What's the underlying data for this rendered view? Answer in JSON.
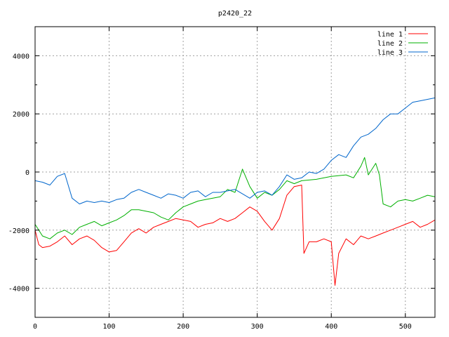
{
  "chart_data": {
    "type": "line",
    "title": "p2420_22",
    "xlim": [
      0,
      540
    ],
    "ylim": [
      -5000,
      5000
    ],
    "x_ticks": [
      0,
      100,
      200,
      300,
      400,
      500
    ],
    "y_ticks": [
      -4000,
      -2000,
      0,
      2000,
      4000
    ],
    "grid": true,
    "legend_position": "top-right",
    "series": [
      {
        "name": "line 1",
        "color": "#ff0000",
        "points": [
          [
            0,
            -2000
          ],
          [
            5,
            -2500
          ],
          [
            10,
            -2600
          ],
          [
            20,
            -2550
          ],
          [
            30,
            -2400
          ],
          [
            40,
            -2200
          ],
          [
            50,
            -2500
          ],
          [
            60,
            -2300
          ],
          [
            70,
            -2200
          ],
          [
            80,
            -2350
          ],
          [
            90,
            -2600
          ],
          [
            100,
            -2750
          ],
          [
            110,
            -2700
          ],
          [
            120,
            -2400
          ],
          [
            130,
            -2100
          ],
          [
            140,
            -1950
          ],
          [
            150,
            -2100
          ],
          [
            160,
            -1900
          ],
          [
            170,
            -1800
          ],
          [
            180,
            -1700
          ],
          [
            190,
            -1600
          ],
          [
            200,
            -1650
          ],
          [
            210,
            -1700
          ],
          [
            220,
            -1900
          ],
          [
            230,
            -1800
          ],
          [
            240,
            -1750
          ],
          [
            250,
            -1600
          ],
          [
            260,
            -1700
          ],
          [
            270,
            -1600
          ],
          [
            280,
            -1400
          ],
          [
            290,
            -1200
          ],
          [
            300,
            -1350
          ],
          [
            310,
            -1700
          ],
          [
            320,
            -2000
          ],
          [
            330,
            -1600
          ],
          [
            340,
            -800
          ],
          [
            350,
            -500
          ],
          [
            360,
            -450
          ],
          [
            363,
            -2800
          ],
          [
            370,
            -2400
          ],
          [
            380,
            -2400
          ],
          [
            390,
            -2300
          ],
          [
            400,
            -2400
          ],
          [
            405,
            -3900
          ],
          [
            410,
            -2800
          ],
          [
            420,
            -2300
          ],
          [
            430,
            -2500
          ],
          [
            440,
            -2200
          ],
          [
            450,
            -2300
          ],
          [
            460,
            -2200
          ],
          [
            470,
            -2100
          ],
          [
            480,
            -2000
          ],
          [
            490,
            -1900
          ],
          [
            500,
            -1800
          ],
          [
            510,
            -1700
          ],
          [
            520,
            -1900
          ],
          [
            530,
            -1800
          ],
          [
            540,
            -1650
          ]
        ]
      },
      {
        "name": "line 2",
        "color": "#00b000",
        "points": [
          [
            0,
            -1800
          ],
          [
            10,
            -2200
          ],
          [
            20,
            -2300
          ],
          [
            30,
            -2100
          ],
          [
            40,
            -2000
          ],
          [
            50,
            -2150
          ],
          [
            60,
            -1900
          ],
          [
            70,
            -1800
          ],
          [
            80,
            -1700
          ],
          [
            90,
            -1850
          ],
          [
            100,
            -1750
          ],
          [
            110,
            -1650
          ],
          [
            120,
            -1500
          ],
          [
            130,
            -1300
          ],
          [
            140,
            -1300
          ],
          [
            150,
            -1350
          ],
          [
            160,
            -1400
          ],
          [
            170,
            -1550
          ],
          [
            180,
            -1650
          ],
          [
            190,
            -1400
          ],
          [
            200,
            -1200
          ],
          [
            210,
            -1100
          ],
          [
            220,
            -1000
          ],
          [
            230,
            -950
          ],
          [
            240,
            -900
          ],
          [
            250,
            -850
          ],
          [
            260,
            -600
          ],
          [
            270,
            -700
          ],
          [
            275,
            -300
          ],
          [
            280,
            100
          ],
          [
            290,
            -500
          ],
          [
            300,
            -900
          ],
          [
            310,
            -700
          ],
          [
            320,
            -800
          ],
          [
            330,
            -600
          ],
          [
            340,
            -300
          ],
          [
            350,
            -400
          ],
          [
            360,
            -300
          ],
          [
            380,
            -250
          ],
          [
            400,
            -150
          ],
          [
            420,
            -100
          ],
          [
            430,
            -200
          ],
          [
            440,
            200
          ],
          [
            445,
            500
          ],
          [
            450,
            -100
          ],
          [
            460,
            300
          ],
          [
            465,
            -100
          ],
          [
            470,
            -1100
          ],
          [
            480,
            -1200
          ],
          [
            490,
            -1000
          ],
          [
            500,
            -950
          ],
          [
            510,
            -1000
          ],
          [
            520,
            -900
          ],
          [
            530,
            -800
          ],
          [
            540,
            -850
          ]
        ]
      },
      {
        "name": "line 3",
        "color": "#0066cc",
        "points": [
          [
            0,
            -300
          ],
          [
            10,
            -350
          ],
          [
            20,
            -450
          ],
          [
            30,
            -150
          ],
          [
            40,
            -50
          ],
          [
            50,
            -900
          ],
          [
            60,
            -1100
          ],
          [
            70,
            -1000
          ],
          [
            80,
            -1050
          ],
          [
            90,
            -1000
          ],
          [
            100,
            -1050
          ],
          [
            110,
            -950
          ],
          [
            120,
            -900
          ],
          [
            130,
            -700
          ],
          [
            140,
            -600
          ],
          [
            150,
            -700
          ],
          [
            160,
            -800
          ],
          [
            170,
            -900
          ],
          [
            180,
            -750
          ],
          [
            190,
            -800
          ],
          [
            200,
            -900
          ],
          [
            210,
            -700
          ],
          [
            220,
            -650
          ],
          [
            230,
            -850
          ],
          [
            240,
            -700
          ],
          [
            250,
            -700
          ],
          [
            260,
            -650
          ],
          [
            270,
            -600
          ],
          [
            280,
            -750
          ],
          [
            290,
            -900
          ],
          [
            300,
            -700
          ],
          [
            310,
            -650
          ],
          [
            320,
            -800
          ],
          [
            330,
            -500
          ],
          [
            340,
            -100
          ],
          [
            350,
            -250
          ],
          [
            360,
            -200
          ],
          [
            370,
            0
          ],
          [
            380,
            -50
          ],
          [
            390,
            100
          ],
          [
            400,
            400
          ],
          [
            410,
            600
          ],
          [
            420,
            500
          ],
          [
            430,
            900
          ],
          [
            440,
            1200
          ],
          [
            450,
            1300
          ],
          [
            460,
            1500
          ],
          [
            470,
            1800
          ],
          [
            480,
            2000
          ],
          [
            490,
            2000
          ],
          [
            500,
            2200
          ],
          [
            510,
            2400
          ],
          [
            520,
            2450
          ],
          [
            530,
            2500
          ],
          [
            540,
            2550
          ]
        ]
      }
    ]
  }
}
